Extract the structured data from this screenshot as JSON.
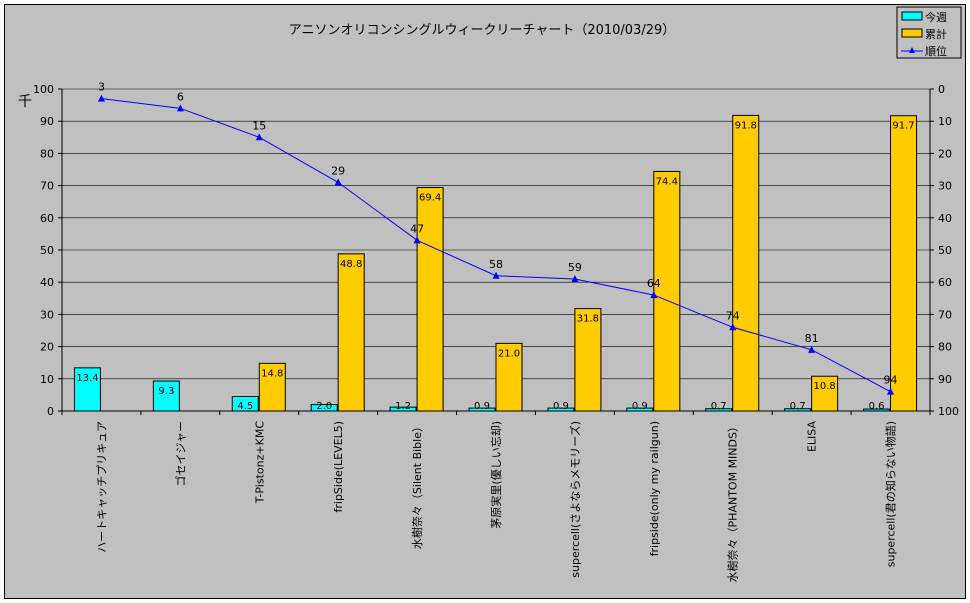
{
  "chart_data": {
    "type": "bar+line",
    "title": "アニソンオリコンシングルウィークリーチャート（2010/03/29）",
    "ylabel_left": "千",
    "ylim_left": [
      0,
      100
    ],
    "ylim_right": [
      0,
      100
    ],
    "right_axis_inverted": true,
    "yticks_left": [
      0,
      10,
      20,
      30,
      40,
      50,
      60,
      70,
      80,
      90,
      100
    ],
    "yticks_right": [
      0,
      10,
      20,
      30,
      40,
      50,
      60,
      70,
      80,
      90,
      100
    ],
    "grid": true,
    "legend_placement": "top-right",
    "categories": [
      "ハートキャッチプリキュア",
      "ゴセイジャー",
      "T-Pistonz+KMC",
      "fripSide(LEVEL5)",
      "水樹奈々（Silent Bible）",
      "茅原実里(優しい忘却)",
      "supercell(さよならメモリーズ)",
      "fripside(only my railgun)",
      "水樹奈々（PHANTOM MINDS）",
      "ELISA",
      "supercell(君の知らない物語)"
    ],
    "series": [
      {
        "name": "今週",
        "type": "bar",
        "axis": "left",
        "color": "#00ffff",
        "values": [
          13.4,
          9.3,
          4.5,
          2.0,
          1.2,
          0.9,
          0.9,
          0.9,
          0.7,
          0.7,
          0.6
        ]
      },
      {
        "name": "累計",
        "type": "bar",
        "axis": "left",
        "color": "#ffcc00",
        "values": [
          null,
          null,
          14.8,
          48.8,
          69.4,
          21.0,
          31.8,
          74.4,
          91.8,
          10.8,
          91.7
        ]
      },
      {
        "name": "順位",
        "type": "line",
        "axis": "right",
        "color": "#0000ff",
        "marker": "triangle",
        "values": [
          3,
          6,
          15,
          29,
          47,
          58,
          59,
          64,
          74,
          81,
          94
        ]
      }
    ]
  }
}
